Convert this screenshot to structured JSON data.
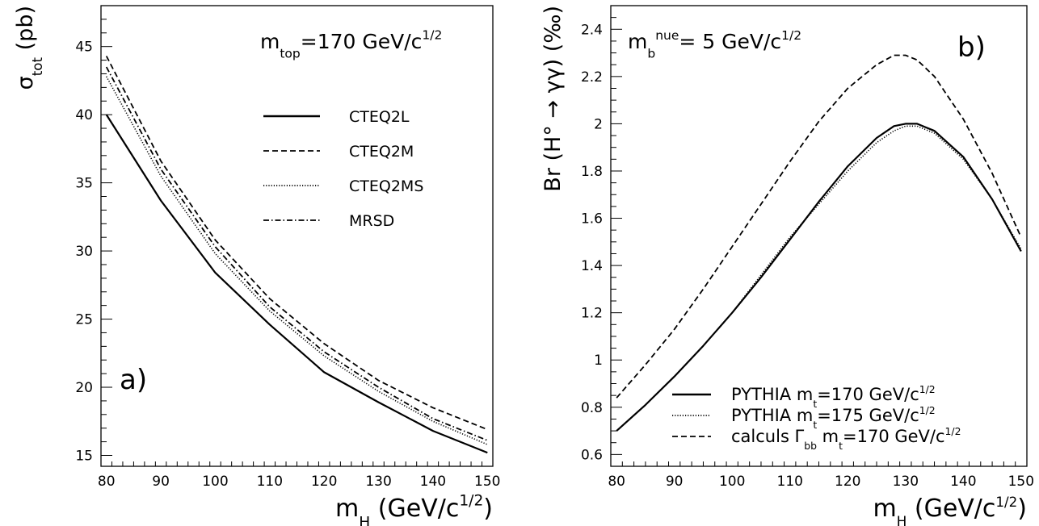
{
  "chart_data": [
    {
      "type": "line",
      "panel_label": "a)",
      "annotation": "m_top=170 GeV/c^1/2",
      "xlabel": "m_H (GeV/c^1/2)",
      "ylabel": "σ_tot (pb)",
      "xlim": [
        79,
        151
      ],
      "ylim": [
        14.2,
        48
      ],
      "x_ticks": [
        80,
        90,
        100,
        110,
        120,
        130,
        140,
        150
      ],
      "y_ticks": [
        15,
        20,
        25,
        30,
        35,
        40,
        45
      ],
      "grid": false,
      "legend_position": "top-right",
      "x": [
        80,
        90,
        100,
        110,
        120,
        130,
        140,
        150
      ],
      "series": [
        {
          "name": "CTEQ2L",
          "style": "solid",
          "values": [
            40.0,
            33.7,
            28.4,
            24.6,
            21.1,
            18.9,
            16.8,
            15.2
          ]
        },
        {
          "name": "CTEQ2M",
          "style": "dashed",
          "values": [
            44.3,
            36.6,
            30.8,
            26.5,
            23.2,
            20.5,
            18.5,
            16.9
          ]
        },
        {
          "name": "CTEQ2MS",
          "style": "dotted",
          "values": [
            42.8,
            35.5,
            29.8,
            25.6,
            22.3,
            19.7,
            17.5,
            15.8
          ]
        },
        {
          "name": "MRSD",
          "style": "dashdot",
          "values": [
            43.5,
            36.0,
            30.3,
            25.9,
            22.6,
            20.0,
            17.7,
            16.1
          ]
        }
      ]
    },
    {
      "type": "line",
      "panel_label": "b)",
      "annotation": "m_b^nue= 5 GeV/c^1/2",
      "xlabel": "m_H (GeV/c^1/2)",
      "ylabel": "Br (H° → γγ) (‰)",
      "xlim": [
        79,
        151
      ],
      "ylim": [
        0.55,
        2.5
      ],
      "x_ticks": [
        80,
        90,
        100,
        110,
        120,
        130,
        140,
        150
      ],
      "y_ticks": [
        0.6,
        0.8,
        1,
        1.2,
        1.4,
        1.6,
        1.8,
        2,
        2.2,
        2.4
      ],
      "grid": false,
      "legend_position": "bottom-right",
      "x": [
        80,
        85,
        90,
        95,
        100,
        105,
        110,
        115,
        120,
        125,
        128,
        130,
        132,
        135,
        140,
        145,
        150
      ],
      "series": [
        {
          "name": "PYTHIA  m_t=170 GeV/c^1/2",
          "style": "solid",
          "values": [
            0.7,
            0.81,
            0.93,
            1.06,
            1.2,
            1.35,
            1.51,
            1.67,
            1.82,
            1.94,
            1.99,
            2.0,
            2.0,
            1.97,
            1.86,
            1.68,
            1.46
          ]
        },
        {
          "name": "PYTHIA  m_t=175 GeV/c^1/2",
          "style": "dotted",
          "values": [
            0.7,
            0.81,
            0.93,
            1.06,
            1.2,
            1.36,
            1.52,
            1.66,
            1.8,
            1.92,
            1.97,
            1.99,
            1.99,
            1.96,
            1.85,
            1.68,
            1.47
          ]
        },
        {
          "name": "calculs Γ_bb m_t=170 GeV/c^1/2",
          "style": "dashed",
          "values": [
            0.84,
            0.98,
            1.13,
            1.3,
            1.48,
            1.66,
            1.84,
            2.01,
            2.15,
            2.25,
            2.29,
            2.29,
            2.27,
            2.2,
            2.02,
            1.79,
            1.52
          ]
        }
      ]
    }
  ]
}
